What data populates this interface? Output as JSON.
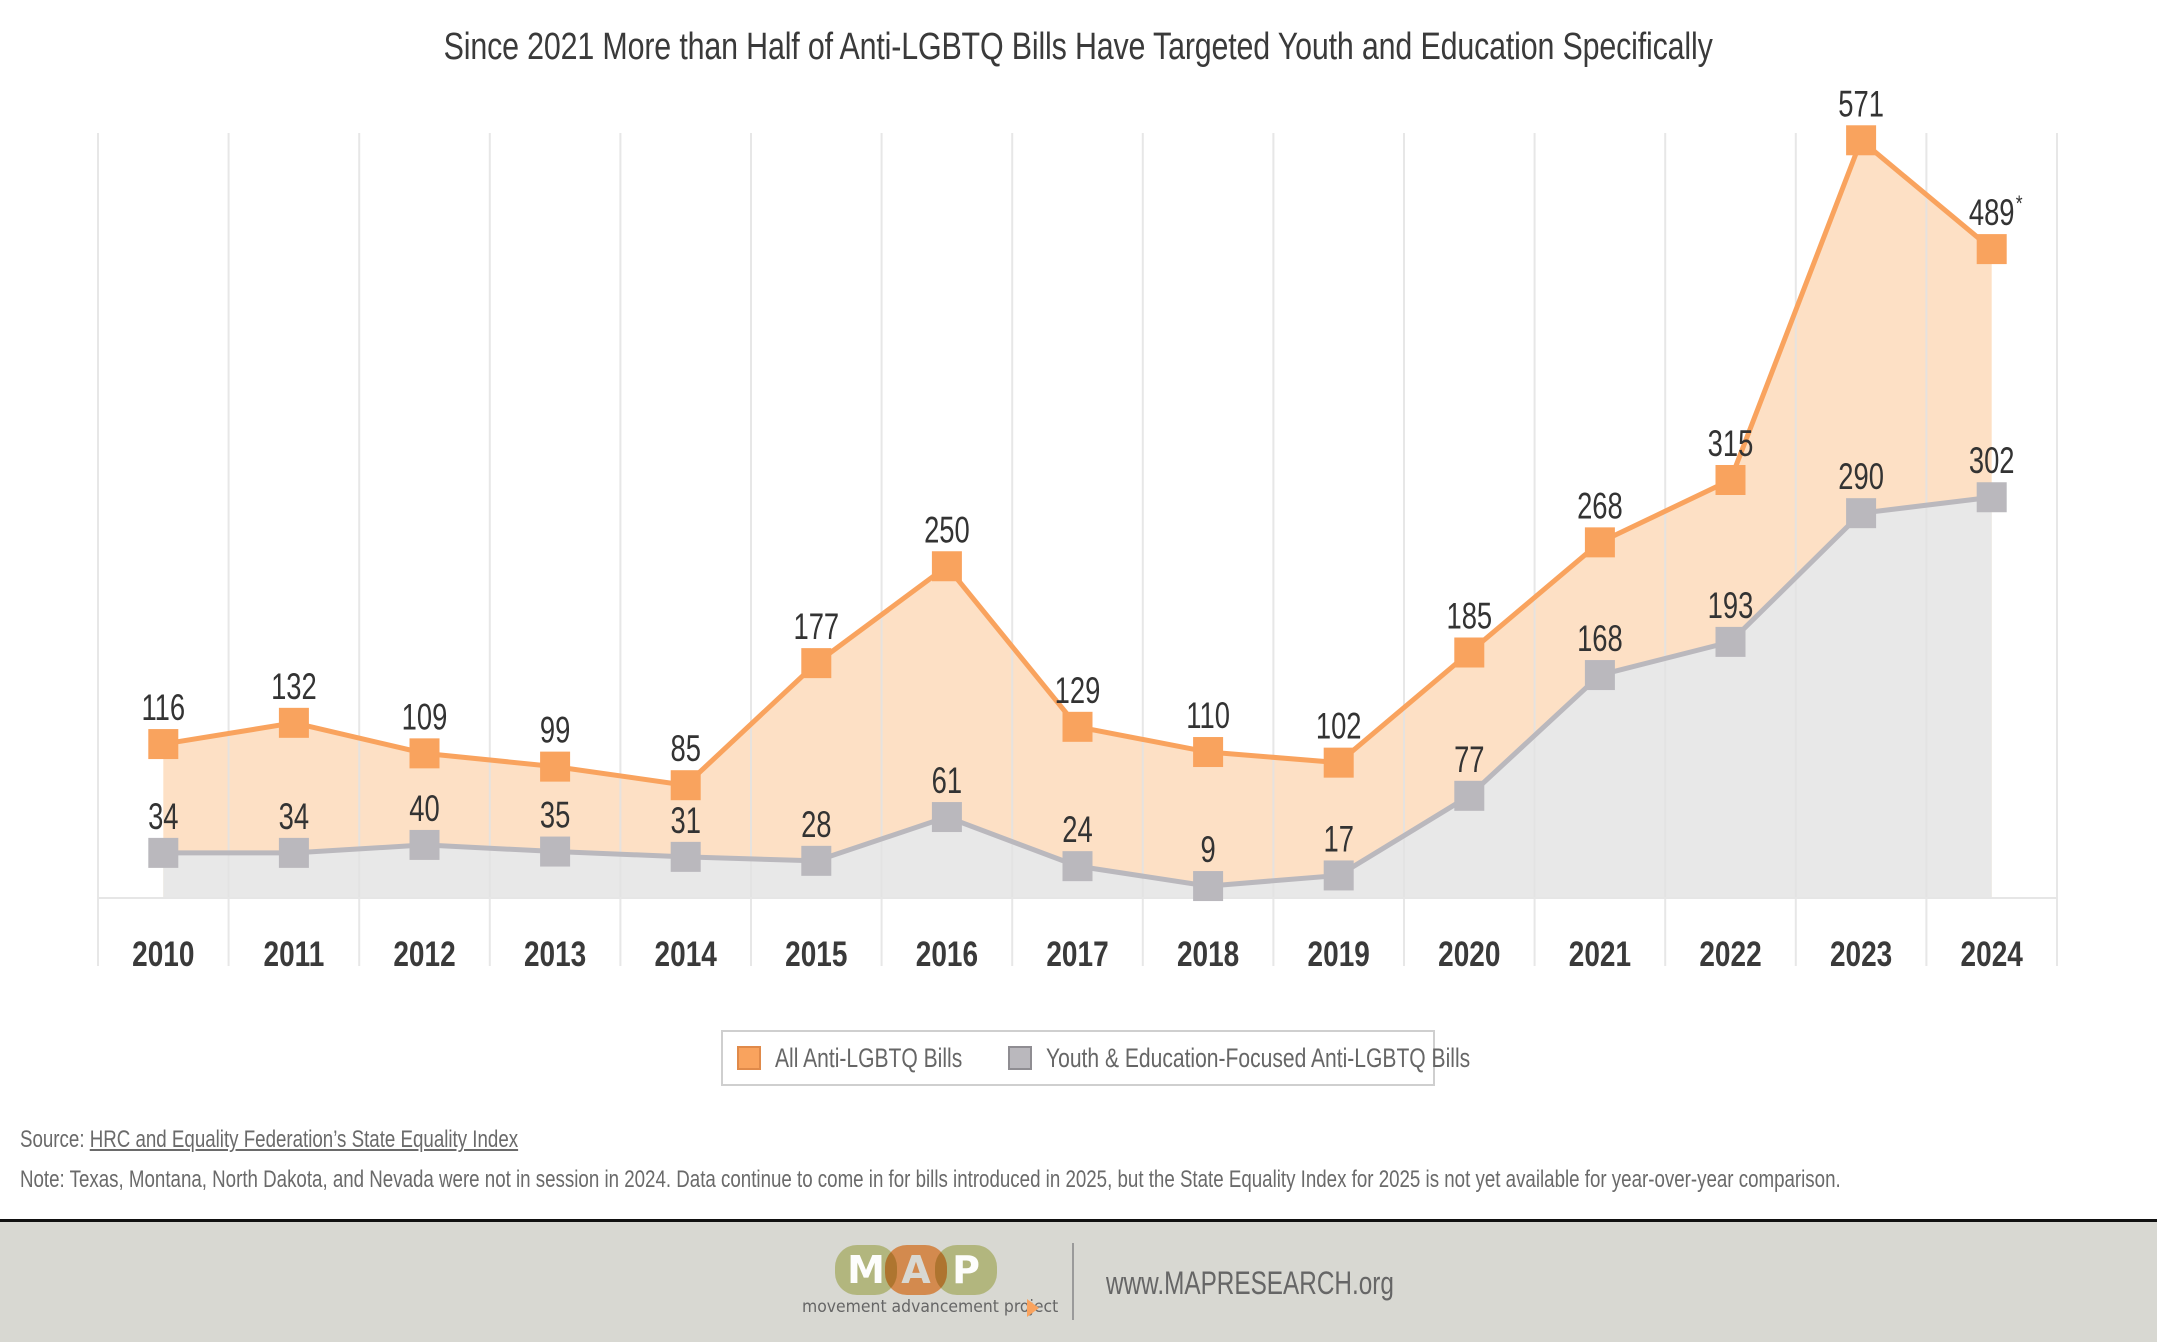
{
  "chart_data": {
    "type": "area",
    "title": "Since 2021 More than Half of Anti-LGBTQ Bills Have Targeted Youth and Education Specifically",
    "xlabel": "",
    "ylabel": "",
    "categories": [
      "2010",
      "2011",
      "2012",
      "2013",
      "2014",
      "2015",
      "2016",
      "2017",
      "2018",
      "2019",
      "2020",
      "2021",
      "2022",
      "2023",
      "2024"
    ],
    "series": [
      {
        "name": "All Anti-LGBTQ Bills",
        "values": [
          116,
          132,
          109,
          99,
          85,
          177,
          250,
          129,
          110,
          102,
          185,
          268,
          315,
          571,
          489
        ],
        "labels": [
          "116",
          "132",
          "109",
          "99",
          "85",
          "177",
          "250",
          "129",
          "110",
          "102",
          "185",
          "268",
          "315",
          "571",
          "489"
        ],
        "annotations": {
          "2024": "*"
        },
        "line_color": "#f9a35e",
        "fill_color": "#fde0c5",
        "marker_color": "#f9a35e"
      },
      {
        "name": "Youth & Education-Focused Anti-LGBTQ Bills",
        "values": [
          34,
          34,
          40,
          35,
          31,
          28,
          61,
          24,
          9,
          17,
          77,
          168,
          193,
          290,
          302
        ],
        "labels": [
          "34",
          "34",
          "40",
          "35",
          "31",
          "28",
          "61",
          "24",
          "9",
          "17",
          "77",
          "168",
          "193",
          "290",
          "302"
        ],
        "line_color": "#bab8bd",
        "fill_color": "#e8e8e8",
        "marker_color": "#bab8bd"
      }
    ],
    "ylim": [
      0,
      571
    ],
    "grid": "vertical",
    "legend_position": "bottom-center",
    "marker": "square"
  },
  "legend": {
    "items": [
      {
        "label": "All Anti-LGBTQ Bills",
        "color": "#f9a35e",
        "border": "#e08a4a"
      },
      {
        "label": "Youth & Education-Focused Anti-LGBTQ Bills",
        "color": "#bab8bd",
        "border": "#8f8d92"
      }
    ]
  },
  "source": {
    "prefix": "Source:",
    "link_text": "HRC and Equality Federation’s State Equality Index"
  },
  "note": "Note: Texas, Montana, North Dakota, and Nevada were not in session in 2024. Data continue to come in for bills introduced in 2025, but the State Equality Index for 2025 is not yet available for year-over-year comparison.",
  "footer": {
    "logo_letters": [
      "M",
      "A",
      "P"
    ],
    "logo_colors": [
      "#b0b57a",
      "#f9a35e",
      "#b0b57a"
    ],
    "tagline": "movement advancement project",
    "website": "www.MAPRESEARCH.org",
    "background": "#d8d8d2"
  }
}
